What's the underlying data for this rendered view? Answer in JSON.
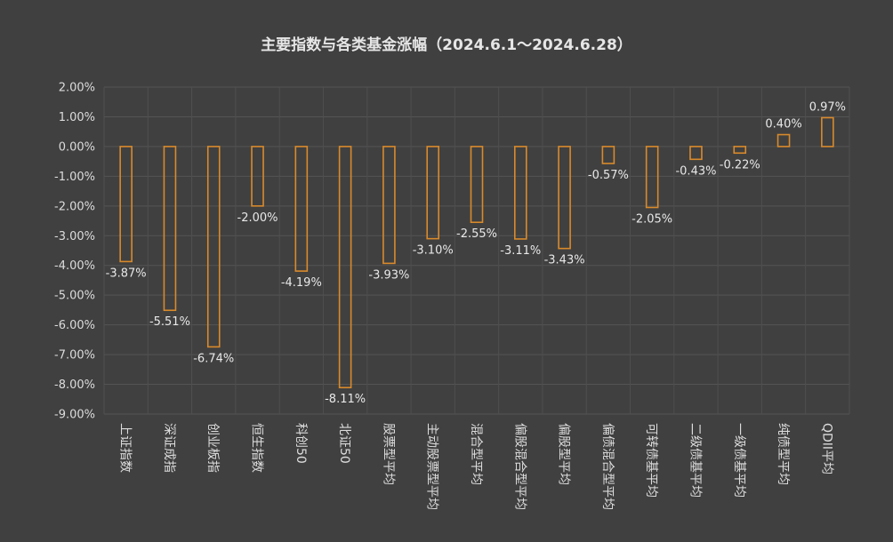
{
  "chart_data": {
    "type": "bar",
    "title": "主要指数与各类基金涨幅（2024.6.1～2024.6.28）",
    "categories": [
      "上证指数",
      "深证成指",
      "创业板指",
      "恒生指数",
      "科创50",
      "北证50",
      "股票型平均",
      "主动股票型平均",
      "混合型平均",
      "偏股混合型平均",
      "偏股型平均",
      "偏债混合型平均",
      "可转债基平均",
      "二级债基平均",
      "一级债基平均",
      "纯债型平均",
      "QDII平均"
    ],
    "values": [
      -3.87,
      -5.51,
      -6.74,
      -2.0,
      -4.19,
      -8.11,
      -3.93,
      -3.1,
      -2.55,
      -3.11,
      -3.43,
      -0.57,
      -2.05,
      -0.43,
      -0.22,
      0.4,
      0.97
    ],
    "data_labels": [
      "-3.87%",
      "-5.51%",
      "-6.74%",
      "-2.00%",
      "-4.19%",
      "-8.11%",
      "-3.93%",
      "-3.10%",
      "-2.55%",
      "-3.11%",
      "-3.43%",
      "-0.57%",
      "-2.05%",
      "-0.43%",
      "-0.22%",
      "0.40%",
      "0.97%"
    ],
    "yticks": [
      "2.00%",
      "1.00%",
      "0.00%",
      "-1.00%",
      "-2.00%",
      "-3.00%",
      "-4.00%",
      "-5.00%",
      "-6.00%",
      "-7.00%",
      "-8.00%",
      "-9.00%"
    ],
    "ylim": [
      -9,
      2
    ],
    "grid": true,
    "bar_color": "#d98a2b"
  }
}
